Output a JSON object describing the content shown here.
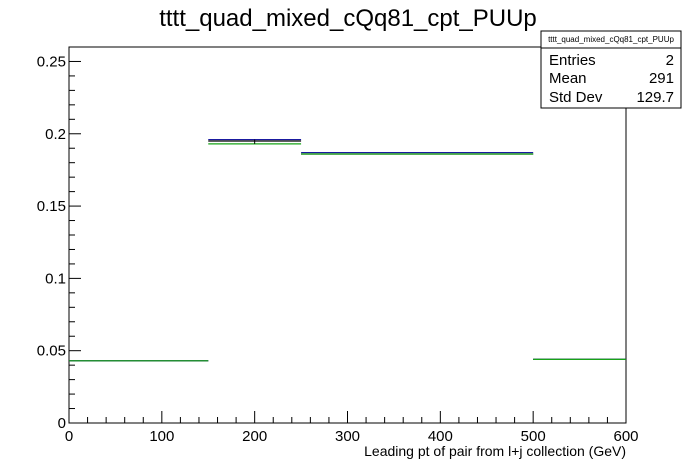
{
  "chart_data": {
    "type": "histogram",
    "title": "tttt_quad_mixed_cQq81_cpt_PUUp",
    "xlabel": "Leading pt of pair from l+j collection (GeV)",
    "ylabel": "",
    "xlim": [
      0,
      600
    ],
    "ylim": [
      0,
      0.26
    ],
    "x_ticks": [
      "0",
      "100",
      "200",
      "300",
      "400",
      "500",
      "600"
    ],
    "y_ticks": [
      "0",
      "0.05",
      "0.1",
      "0.15",
      "0.2",
      "0.25"
    ],
    "bin_edges": [
      0,
      150,
      250,
      500,
      600
    ],
    "series": [
      {
        "color": "#000000",
        "values": [
          0.043,
          0.195,
          0.186,
          0.044
        ]
      },
      {
        "color": "#1a1aa0",
        "values": [
          0.043,
          0.196,
          0.187,
          0.044
        ]
      },
      {
        "color": "#16a316",
        "values": [
          0.043,
          0.193,
          0.186,
          0.044
        ]
      }
    ],
    "grid": false,
    "stats_box": {
      "title": "tttt_quad_mixed_cQq81_cpt_PUUp",
      "rows": [
        {
          "label": "Entries",
          "value": "2"
        },
        {
          "label": "Mean",
          "value": "291"
        },
        {
          "label": "Std Dev",
          "value": "129.7"
        }
      ]
    }
  }
}
